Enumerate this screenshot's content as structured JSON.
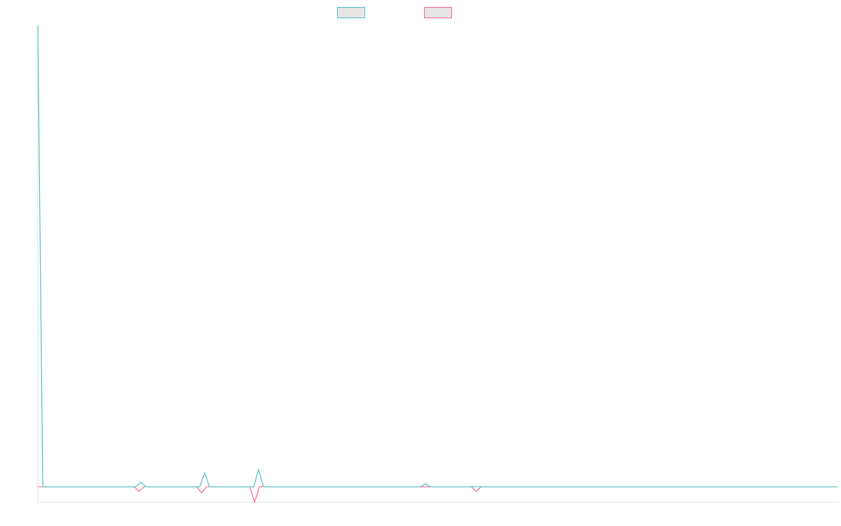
{
  "chart_data": {
    "type": "line",
    "ylim": [
      -1,
      30
    ],
    "series": [
      {
        "color": "#4bc0c0",
        "values": [
          30,
          0,
          0,
          0,
          0,
          0,
          0,
          0,
          0,
          0,
          0,
          0,
          0,
          0,
          0,
          0,
          0,
          0,
          0,
          0,
          0,
          0.3,
          0,
          0,
          0,
          0,
          0,
          0,
          0,
          0,
          0,
          0,
          0,
          0,
          0.9,
          0,
          0,
          0,
          0,
          0,
          0,
          0,
          0,
          0,
          0,
          1.1,
          0,
          0,
          0,
          0,
          0,
          0,
          0,
          0,
          0,
          0,
          0,
          0,
          0,
          0,
          0,
          0,
          0,
          0,
          0,
          0,
          0,
          0,
          0,
          0,
          0,
          0,
          0,
          0,
          0,
          0,
          0,
          0,
          0,
          0.2,
          0,
          0,
          0,
          0,
          0,
          0,
          0,
          0,
          0,
          0,
          0,
          0,
          0,
          0,
          0,
          0,
          0,
          0,
          0,
          0,
          0,
          0,
          0,
          0,
          0,
          0,
          0,
          0,
          0,
          0,
          0,
          0,
          0,
          0,
          0,
          0,
          0,
          0,
          0,
          0,
          0,
          0,
          0,
          0,
          0,
          0,
          0,
          0,
          0,
          0,
          0,
          0,
          0,
          0,
          0,
          0,
          0,
          0,
          0,
          0,
          0,
          0,
          0,
          0,
          0,
          0,
          0,
          0,
          0,
          0,
          0,
          0,
          0,
          0,
          0,
          0,
          0,
          0,
          0,
          0,
          0,
          0,
          0,
          0
        ]
      },
      {
        "color": "#ff6384",
        "values": [
          0,
          0,
          0,
          0,
          0,
          0,
          0,
          0,
          0,
          0,
          0,
          0,
          0,
          0,
          0,
          0,
          0,
          0,
          0,
          0,
          0,
          -0.3,
          0,
          0,
          0,
          0,
          0,
          0,
          0,
          0,
          0,
          0,
          0,
          0,
          -0.4,
          0,
          0,
          0,
          0,
          0,
          0,
          0,
          0,
          0,
          0,
          -1,
          0,
          0,
          0,
          0,
          0,
          0,
          0,
          0,
          0,
          0,
          0,
          0,
          0,
          0,
          0,
          0,
          0,
          0,
          0,
          0,
          0,
          0,
          0,
          0,
          0,
          0,
          0,
          0,
          0,
          0,
          0,
          0,
          0,
          0,
          0,
          0,
          0,
          0,
          0,
          0,
          0,
          0,
          0,
          0,
          0,
          -0.3,
          0,
          0,
          0,
          0,
          0,
          0,
          0,
          0,
          0,
          0,
          0,
          0,
          0,
          0,
          0,
          0,
          0,
          0,
          0,
          0,
          0,
          0,
          0,
          0,
          0,
          0,
          0,
          0,
          0,
          0,
          0,
          0,
          0,
          0,
          0,
          0,
          0,
          0,
          0,
          0,
          0,
          0,
          0,
          0,
          0,
          0,
          0,
          0,
          0,
          0,
          0,
          0,
          0,
          0,
          0,
          0,
          0,
          0,
          0,
          0,
          0,
          0,
          0,
          0,
          0,
          0,
          0,
          0,
          0,
          0,
          0,
          0,
          0,
          0,
          0
        ]
      }
    ]
  }
}
